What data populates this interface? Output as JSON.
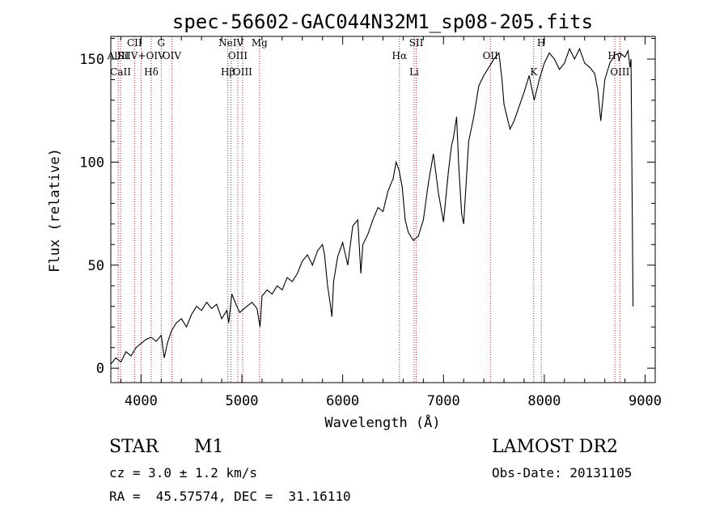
{
  "chart_data": {
    "type": "line",
    "title": "spec-56602-GAC044N32M1_sp08-205.fits",
    "xlabel": "Wavelength (Å)",
    "ylabel": "Flux (relative)",
    "xlim": [
      3700,
      9100
    ],
    "ylim": [
      -7,
      161
    ],
    "x_ticks": [
      4000,
      5000,
      6000,
      7000,
      8000,
      9000
    ],
    "y_ticks": [
      0,
      50,
      100,
      150
    ],
    "grid": false,
    "line_color": "#000000",
    "marker_color": "#b22222",
    "series": [
      {
        "x": [
          3700,
          3750,
          3800,
          3850,
          3900,
          3950,
          4000,
          4050,
          4100,
          4150,
          4200,
          4230,
          4260,
          4300,
          4350,
          4400,
          4450,
          4500,
          4550,
          4600,
          4650,
          4700,
          4750,
          4800,
          4850,
          4870,
          4900,
          4950,
          4980,
          5000,
          5050,
          5100,
          5150,
          5180,
          5200,
          5250,
          5300,
          5350,
          5400,
          5450,
          5500,
          5550,
          5600,
          5650,
          5700,
          5750,
          5800,
          5820,
          5850,
          5880,
          5893,
          5910,
          5950,
          6000,
          6050,
          6100,
          6150,
          6180,
          6200,
          6250,
          6300,
          6350,
          6400,
          6450,
          6500,
          6530,
          6560,
          6590,
          6620,
          6650,
          6700,
          6750,
          6800,
          6850,
          6900,
          6950,
          7000,
          7050,
          7080,
          7100,
          7130,
          7150,
          7180,
          7200,
          7250,
          7300,
          7350,
          7400,
          7450,
          7500,
          7550,
          7580,
          7600,
          7630,
          7660,
          7700,
          7750,
          7800,
          7850,
          7900,
          7950,
          8000,
          8050,
          8100,
          8150,
          8200,
          8250,
          8300,
          8350,
          8400,
          8450,
          8500,
          8530,
          8560,
          8600,
          8650,
          8700,
          8750,
          8800,
          8830,
          8850,
          8860,
          8880
        ],
        "y": [
          2,
          5,
          3,
          8,
          6,
          10,
          12,
          14,
          15,
          13,
          16,
          5,
          12,
          18,
          22,
          24,
          20,
          26,
          30,
          28,
          32,
          29,
          31,
          24,
          28,
          22,
          36,
          30,
          27,
          28,
          30,
          32,
          29,
          20,
          35,
          38,
          36,
          40,
          38,
          44,
          42,
          46,
          52,
          55,
          50,
          57,
          60,
          55,
          40,
          30,
          25,
          42,
          54,
          61,
          50,
          69,
          72,
          46,
          60,
          65,
          72,
          78,
          76,
          86,
          92,
          100,
          96,
          88,
          72,
          66,
          62,
          64,
          72,
          90,
          104,
          85,
          71,
          96,
          108,
          112,
          122,
          99,
          75,
          70,
          110,
          122,
          137,
          142,
          146,
          150,
          153,
          140,
          128,
          122,
          116,
          120,
          127,
          134,
          142,
          130,
          140,
          148,
          153,
          150,
          145,
          148,
          155,
          150,
          155,
          148,
          146,
          143,
          135,
          120,
          140,
          148,
          152,
          153,
          151,
          154,
          146,
          150,
          30
        ]
      }
    ],
    "lines": [
      {
        "x": 3773,
        "label": "AlIII"
      },
      {
        "x": 3797,
        "label": "CaII"
      },
      {
        "x": 3935,
        "label": "CII"
      },
      {
        "x": 4000,
        "label": "SiIV+OIV"
      },
      {
        "x": 4101,
        "label": "Hδ"
      },
      {
        "x": 4200,
        "label": "G"
      },
      {
        "x": 4305,
        "label": "OIV"
      },
      {
        "x": 4861,
        "label": "Hβ"
      },
      {
        "x": 4893,
        "label": "NeIV"
      },
      {
        "x": 4959,
        "label": "OIII"
      },
      {
        "x": 5007,
        "label": "OIII"
      },
      {
        "x": 5175,
        "label": "Mg"
      },
      {
        "x": 6563,
        "label": "Hα"
      },
      {
        "x": 6708,
        "label": "Li"
      },
      {
        "x": 6730,
        "label": "SII"
      },
      {
        "x": 7465,
        "label": "OII"
      },
      {
        "x": 7895,
        "label": "K"
      },
      {
        "x": 7970,
        "label": "H"
      },
      {
        "x": 8700,
        "label": "Hγ"
      },
      {
        "x": 8750,
        "label": "OIII"
      }
    ]
  },
  "info": {
    "object_class": "STAR",
    "subclass": "M1",
    "survey": "LAMOST DR2",
    "redshift": "cz = 3.0 ± 1.2 km/s",
    "obs_date": "Obs-Date: 20131105",
    "coords": "RA =  45.57574, DEC =  31.16110"
  }
}
